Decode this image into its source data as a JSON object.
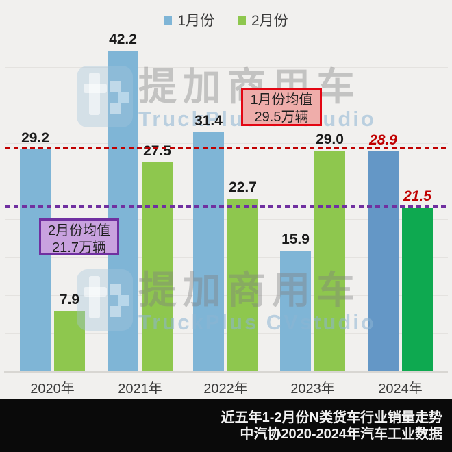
{
  "legend": [
    {
      "label": "1月份"
    },
    {
      "label": "2月份"
    }
  ],
  "chart_data": {
    "type": "bar",
    "title": "",
    "categories": [
      "2020年",
      "2021年",
      "2022年",
      "2023年",
      "2024年"
    ],
    "series": [
      {
        "name": "1月份",
        "key": "jan",
        "values": [
          29.2,
          42.2,
          31.4,
          15.9,
          28.9
        ],
        "color": "#7fb5d6",
        "highlight_color": "#6497c6"
      },
      {
        "name": "2月份",
        "key": "feb",
        "values": [
          7.9,
          27.5,
          22.7,
          29.0,
          21.5
        ],
        "color": "#8ec74e",
        "highlight_color": "#0ea950"
      }
    ],
    "highlight_index": 4,
    "highlight_label_color": "#c00000",
    "mean_lines": [
      {
        "name": "1月份均值",
        "value": 29.5,
        "color": "#c00000"
      },
      {
        "name": "2月份均值",
        "value": 21.7,
        "color": "#7030a0"
      }
    ],
    "ylim": [
      0,
      45
    ],
    "grid": "on",
    "grid_step": 5,
    "legend_position": "top",
    "value_labels": "on"
  },
  "annotations": {
    "jan_mean_box": {
      "line1": "1月份均值",
      "line2": "29.5万辆",
      "border": "#e30613",
      "bg": "#efadaa"
    },
    "feb_mean_box": {
      "line1": "2月份均值",
      "line2": "21.7万辆",
      "border": "#7030a0",
      "bg": "#c9a2df"
    }
  },
  "watermark": {
    "cn": "提加商用车",
    "en": "TruckPlus CVstudio"
  },
  "footer": {
    "line1": "近五年1-2月份N类货车行业销量走势",
    "line2": "中汽协2020-2024年汽车工业数据"
  },
  "colors": {
    "background": "#f1f0ee",
    "footer_bg": "#0a0a0a"
  }
}
